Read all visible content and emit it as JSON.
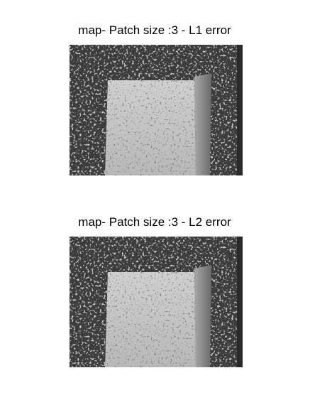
{
  "figures": [
    {
      "title": "map- Patch size :3 - L1 error"
    },
    {
      "title": "map- Patch size :3 - L2 error"
    }
  ]
}
